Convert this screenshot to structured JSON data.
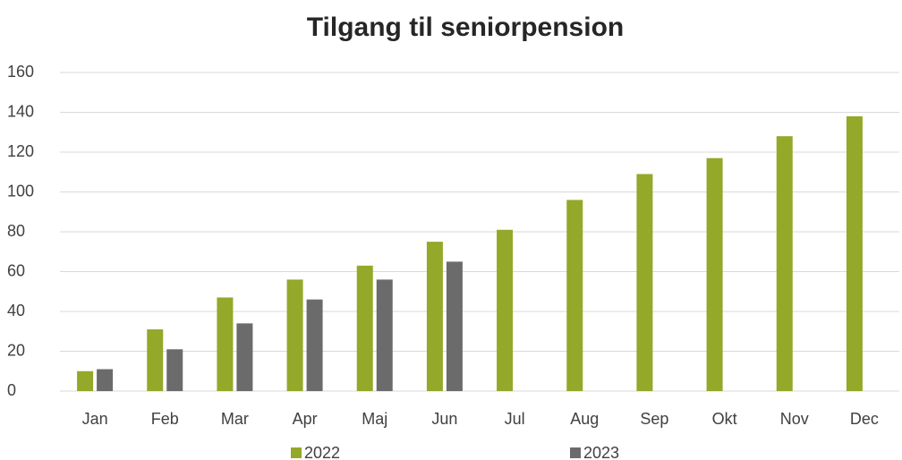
{
  "chart_data": {
    "type": "bar",
    "title": "Tilgang til seniorpension",
    "categories": [
      "Jan",
      "Feb",
      "Mar",
      "Apr",
      "Maj",
      "Jun",
      "Jul",
      "Aug",
      "Sep",
      "Okt",
      "Nov",
      "Dec"
    ],
    "series": [
      {
        "name": "2022",
        "color": "#94a829",
        "values": [
          10,
          31,
          47,
          56,
          63,
          75,
          81,
          96,
          109,
          117,
          128,
          138
        ]
      },
      {
        "name": "2023",
        "color": "#6b6b6b",
        "values": [
          11,
          21,
          34,
          46,
          56,
          65,
          null,
          null,
          null,
          null,
          null,
          null
        ]
      }
    ],
    "ylim": [
      0,
      160
    ],
    "yticks": [
      0,
      20,
      40,
      60,
      80,
      100,
      120,
      140,
      160
    ],
    "grid": true,
    "legend": "bottom"
  }
}
